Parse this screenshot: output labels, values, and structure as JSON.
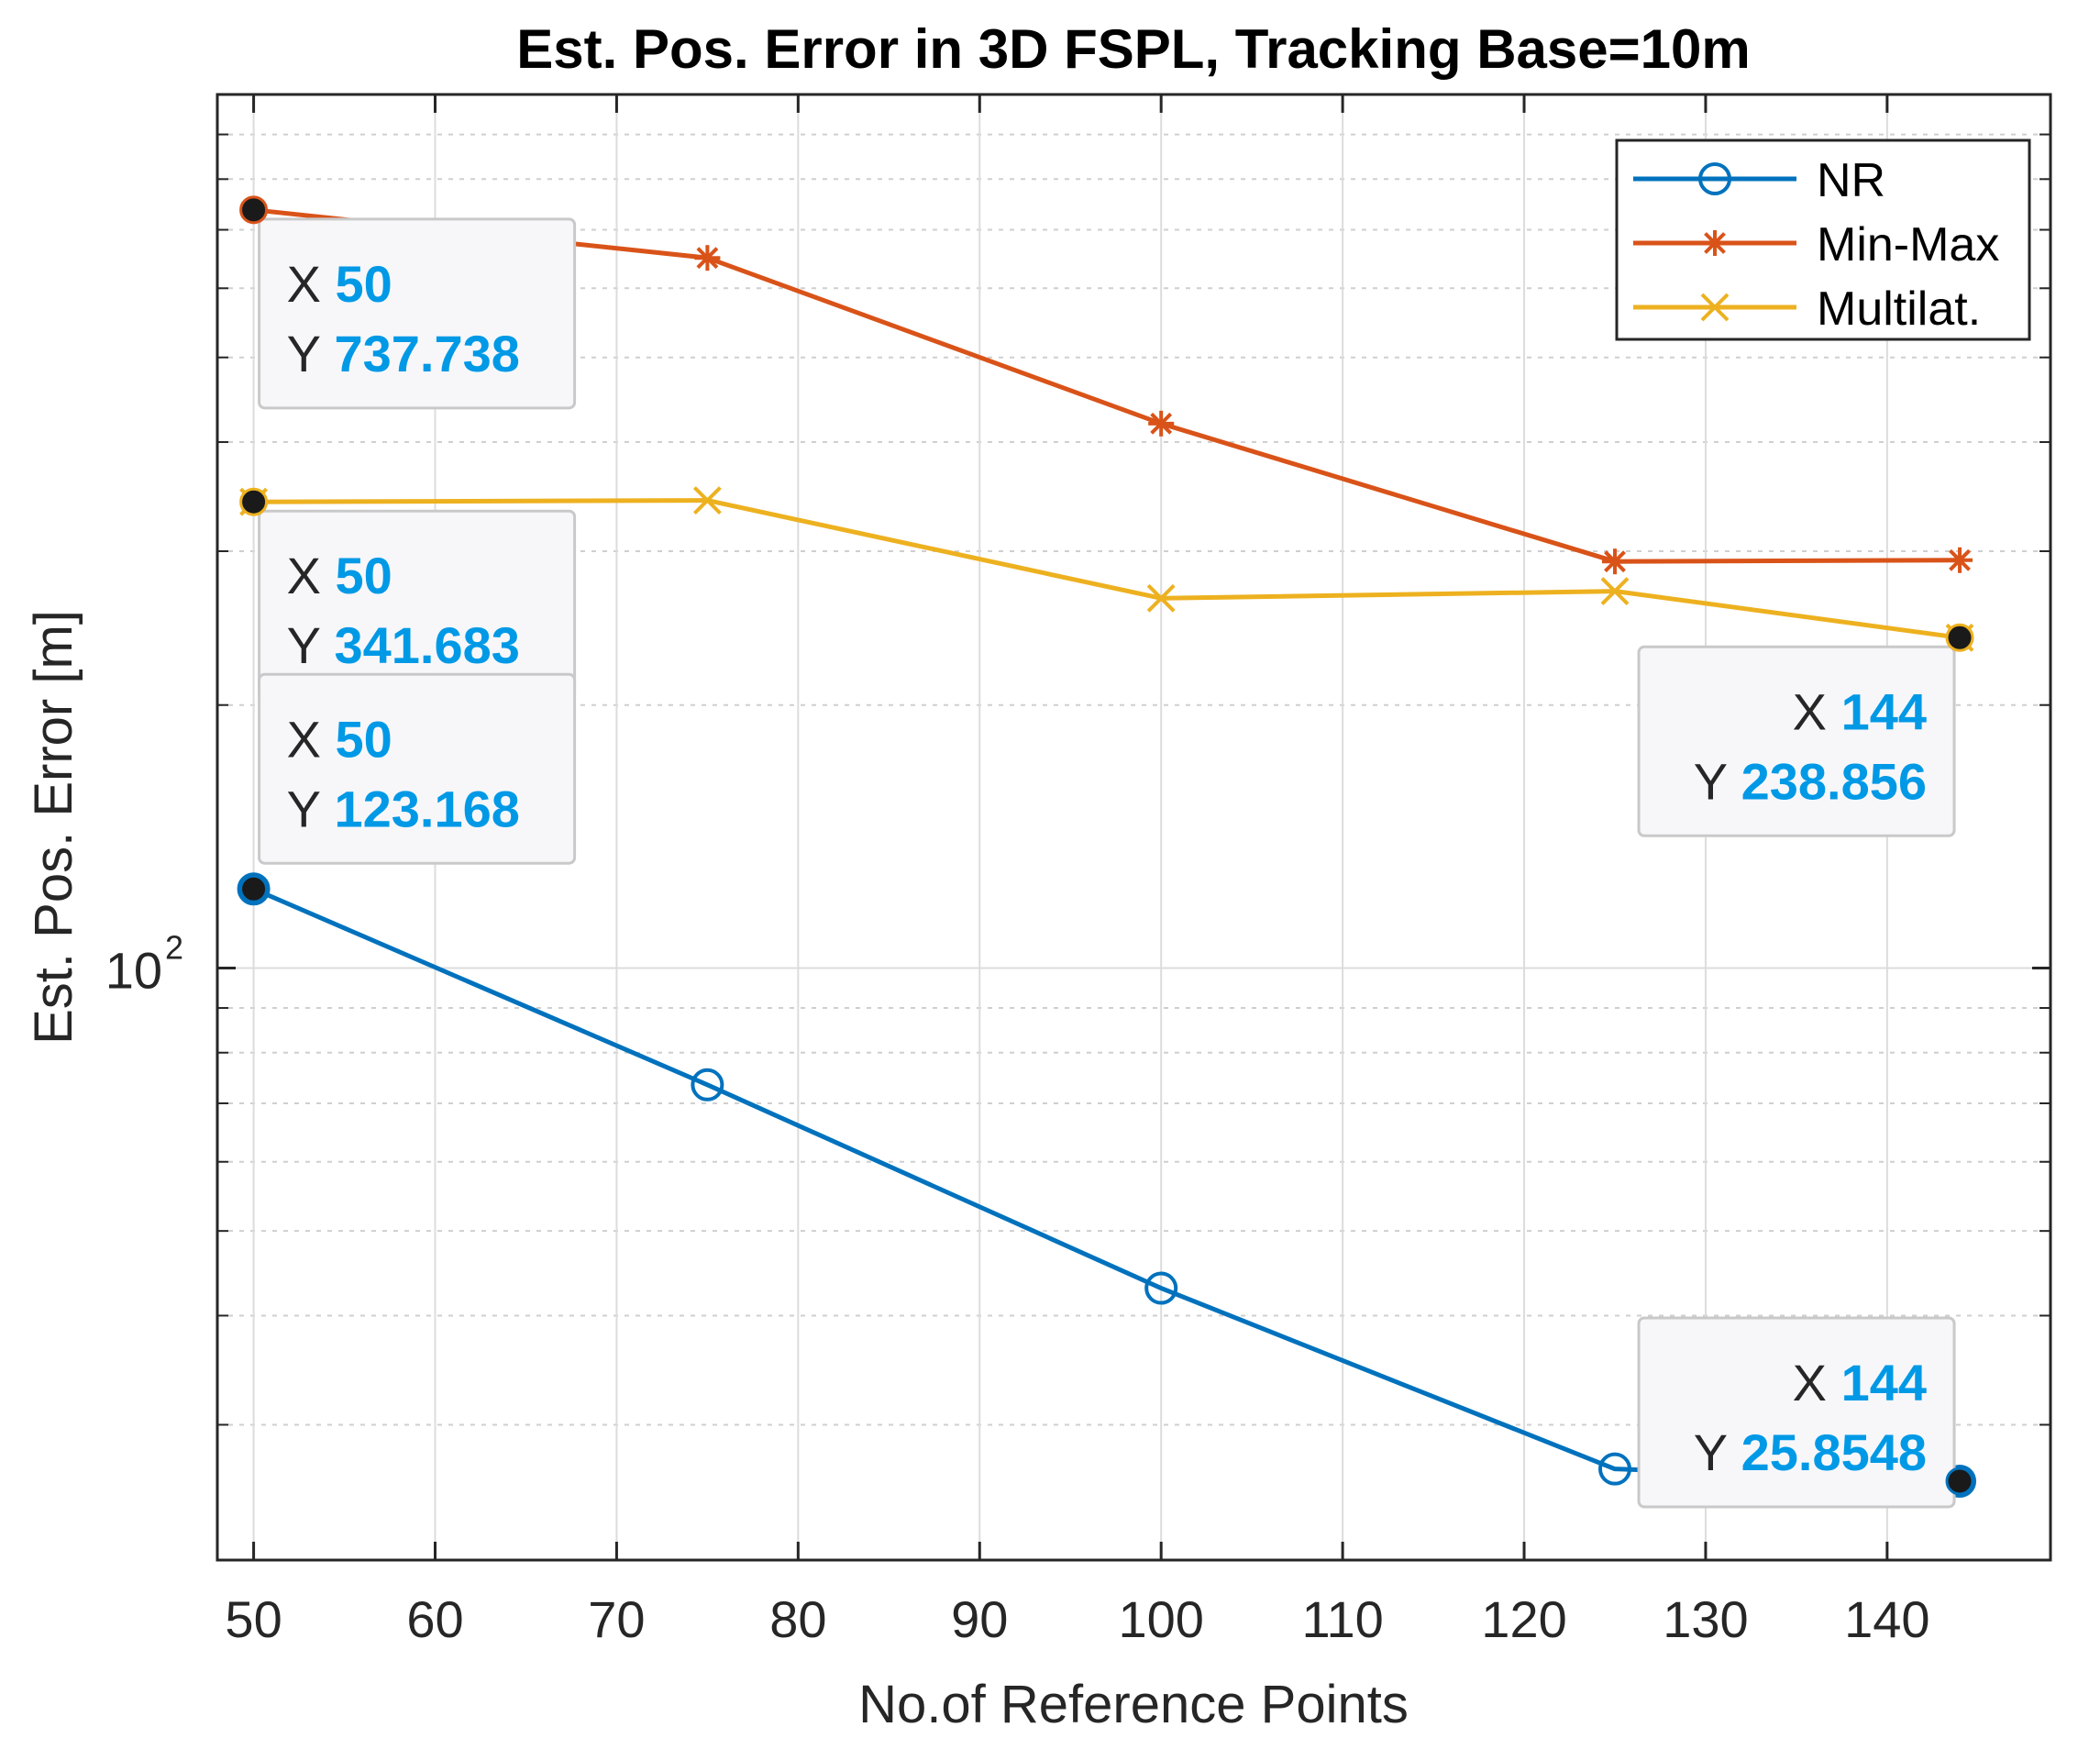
{
  "chart_data": {
    "type": "line",
    "title": "Est. Pos. Error in 3D FSPL, Tracking Base=10m",
    "xlabel": "No.of Reference Points",
    "ylabel": "Est. Pos. Error [m]",
    "yscale": "log",
    "xlim": [
      48,
      149
    ],
    "ylim": [
      21.0,
      1000.0
    ],
    "xticks": [
      50,
      60,
      70,
      80,
      90,
      100,
      110,
      120,
      130,
      140
    ],
    "yticks": [
      {
        "value": 100,
        "base": "10",
        "exp": "2"
      }
    ],
    "grid": true,
    "legend_position": "top-right",
    "series": [
      {
        "name": "NR",
        "color": "#0072BD",
        "marker": "o",
        "x": [
          50,
          75,
          100,
          125,
          144
        ],
        "y": [
          123.168,
          73.5,
          43.0,
          26.7,
          25.8548
        ]
      },
      {
        "name": "Min-Max",
        "color": "#D95319",
        "marker": "*",
        "x": [
          50,
          75,
          100,
          125,
          144
        ],
        "y": [
          737.738,
          650,
          420,
          292,
          293
        ]
      },
      {
        "name": "Multilat.",
        "color": "#EDB120",
        "marker": "x",
        "x": [
          50,
          75,
          100,
          125,
          144
        ],
        "y": [
          341.683,
          343,
          265,
          270,
          238.856
        ]
      }
    ],
    "datatips": [
      {
        "series": "Min-Max",
        "x": 50,
        "y": 737.738,
        "x_label": "X",
        "y_label": "Y",
        "x_text": "50",
        "y_text": "737.738",
        "side": "right"
      },
      {
        "series": "Multilat.",
        "x": 50,
        "y": 341.683,
        "x_label": "X",
        "y_label": "Y",
        "x_text": "50",
        "y_text": "341.683",
        "side": "right"
      },
      {
        "series": "NR",
        "x": 50,
        "y": 123.168,
        "x_label": "X",
        "y_label": "Y",
        "x_text": "50",
        "y_text": "123.168",
        "side": "right-above"
      },
      {
        "series": "Multilat.",
        "x": 144,
        "y": 238.856,
        "x_label": "X",
        "y_label": "Y",
        "x_text": "144",
        "y_text": "238.856",
        "side": "left-below"
      },
      {
        "series": "NR",
        "x": 144,
        "y": 25.8548,
        "x_label": "X",
        "y_label": "Y",
        "x_text": "144",
        "y_text": "25.8548",
        "side": "left-above"
      }
    ],
    "datatip_value_color": "#0099E6"
  }
}
